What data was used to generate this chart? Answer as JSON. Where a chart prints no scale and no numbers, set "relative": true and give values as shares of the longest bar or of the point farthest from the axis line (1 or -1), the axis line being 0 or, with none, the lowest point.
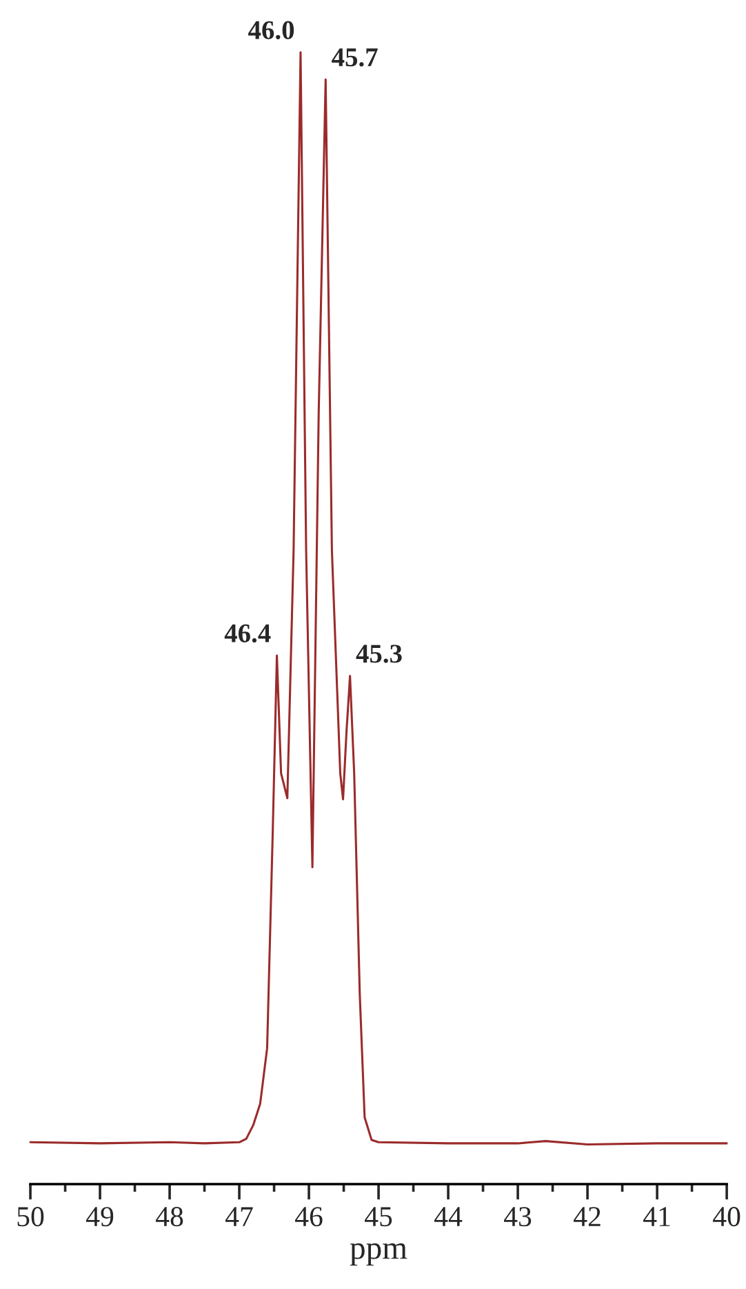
{
  "chart_data": {
    "type": "line",
    "relative": true,
    "xlabel": "ppm",
    "xlim": [
      50,
      40
    ],
    "xticks": [
      50,
      {
        "value": 49.5,
        "label": null
      },
      49,
      {
        "value": 48.5,
        "label": null
      },
      48,
      {
        "value": 47.5,
        "label": null
      },
      47,
      {
        "value": 46.5,
        "label": null
      },
      46,
      {
        "value": 45.5,
        "label": null
      },
      45,
      {
        "value": 44.5,
        "label": null
      },
      44,
      {
        "value": 43.5,
        "label": null
      },
      43,
      {
        "value": 42.5,
        "label": null
      },
      42,
      {
        "value": 41.5,
        "label": null
      },
      41,
      {
        "value": 40.5,
        "label": null
      },
      40
    ],
    "series": [
      {
        "color": "#9b2b2b",
        "x": [
          50.0,
          49.0,
          48.0,
          47.5,
          47.0,
          46.9,
          46.8,
          46.7,
          46.6,
          46.52,
          46.46,
          46.4,
          46.31,
          46.22,
          46.12,
          46.04,
          45.95,
          45.86,
          45.76,
          45.67,
          45.55,
          45.51,
          45.46,
          45.41,
          45.35,
          45.27,
          45.2,
          45.1,
          45.0,
          44.0,
          43.0,
          42.6,
          42.0,
          41.0,
          40.0
        ],
        "values": [
          0.037,
          0.036,
          0.037,
          0.036,
          0.037,
          0.04,
          0.052,
          0.071,
          0.12,
          0.31,
          0.467,
          0.363,
          0.341,
          0.56,
          1.0,
          0.56,
          0.28,
          0.68,
          0.976,
          0.56,
          0.363,
          0.34,
          0.4,
          0.449,
          0.363,
          0.168,
          0.059,
          0.039,
          0.037,
          0.036,
          0.036,
          0.038,
          0.035,
          0.036,
          0.036
        ]
      }
    ],
    "annotations": [
      {
        "text": "46.4",
        "x": 46.46,
        "y": 0.467
      },
      {
        "text": "46.0",
        "x": 46.12,
        "y": 1.0
      },
      {
        "text": "45.7",
        "x": 45.76,
        "y": 0.976
      },
      {
        "text": "45.3",
        "x": 45.41,
        "y": 0.449
      }
    ]
  }
}
